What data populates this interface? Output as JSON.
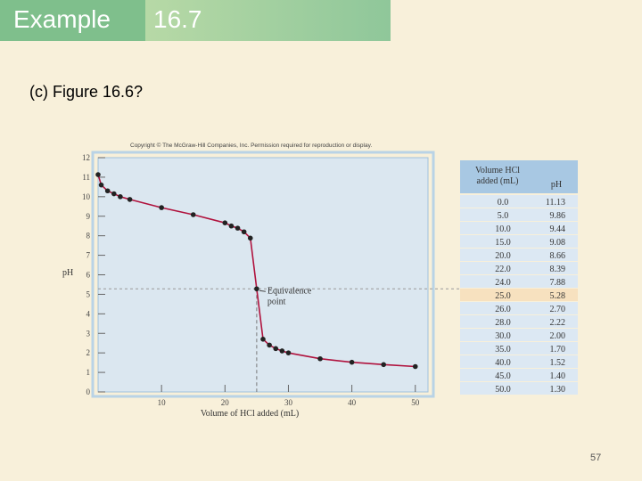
{
  "header": {
    "left": "Example",
    "right": "16.7"
  },
  "subtitle": "(c) Figure 16.6?",
  "copyright": "Copyright © The McGraw-Hill Companies, Inc. Permission required for reproduction or display.",
  "slide_number": "57",
  "colors": {
    "curve": "#b0123d",
    "plot_bg": "#dbe7f0",
    "header_dark": "#7fbf8c",
    "table_header": "#a8c8e3",
    "table_highlight": "#f7e1bf"
  },
  "chart_data": {
    "type": "line",
    "title": "",
    "xlabel": "Volume of HCl added (mL)",
    "ylabel": "pH",
    "xlim": [
      0,
      52
    ],
    "ylim": [
      0,
      12
    ],
    "x_ticks": [
      10,
      20,
      30,
      40,
      50
    ],
    "y_ticks": [
      0,
      1,
      2,
      3,
      4,
      5,
      6,
      7,
      8,
      9,
      10,
      11,
      12
    ],
    "annotation": {
      "text_line1": "Equivalence",
      "text_line2": "point",
      "x": 25.0,
      "y": 5.28
    },
    "points": [
      [
        0.0,
        11.13
      ],
      [
        0.5,
        10.6
      ],
      [
        1.5,
        10.3
      ],
      [
        2.5,
        10.15
      ],
      [
        3.5,
        10.0
      ],
      [
        5.0,
        9.86
      ],
      [
        10.0,
        9.44
      ],
      [
        15.0,
        9.08
      ],
      [
        20.0,
        8.66
      ],
      [
        21.0,
        8.5
      ],
      [
        22.0,
        8.39
      ],
      [
        23.0,
        8.2
      ],
      [
        24.0,
        7.88
      ],
      [
        25.0,
        5.28
      ],
      [
        26.0,
        2.7
      ],
      [
        27.0,
        2.4
      ],
      [
        28.0,
        2.22
      ],
      [
        29.0,
        2.1
      ],
      [
        30.0,
        2.0
      ],
      [
        35.0,
        1.7
      ],
      [
        40.0,
        1.52
      ],
      [
        45.0,
        1.4
      ],
      [
        50.0,
        1.3
      ]
    ],
    "table": {
      "headers": [
        "Volume HCl added (mL)",
        "pH"
      ],
      "header_col1_line1": "Volume HCl",
      "header_col1_line2": "added (mL)",
      "highlight_row": 7,
      "rows": [
        [
          "0.0",
          "11.13"
        ],
        [
          "5.0",
          "9.86"
        ],
        [
          "10.0",
          "9.44"
        ],
        [
          "15.0",
          "9.08"
        ],
        [
          "20.0",
          "8.66"
        ],
        [
          "22.0",
          "8.39"
        ],
        [
          "24.0",
          "7.88"
        ],
        [
          "25.0",
          "5.28"
        ],
        [
          "26.0",
          "2.70"
        ],
        [
          "28.0",
          "2.22"
        ],
        [
          "30.0",
          "2.00"
        ],
        [
          "35.0",
          "1.70"
        ],
        [
          "40.0",
          "1.52"
        ],
        [
          "45.0",
          "1.40"
        ],
        [
          "50.0",
          "1.30"
        ]
      ]
    }
  }
}
